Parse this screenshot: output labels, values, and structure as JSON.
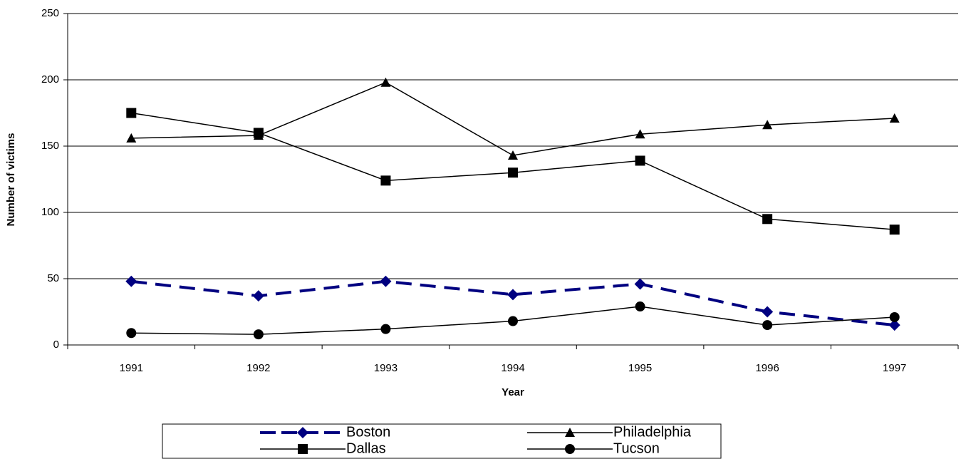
{
  "chart_data": {
    "type": "line",
    "x_label": "Year",
    "y_label": "Number of victims",
    "categories": [
      "1991",
      "1992",
      "1993",
      "1994",
      "1995",
      "1996",
      "1997"
    ],
    "series": [
      {
        "name": "Boston",
        "color": "#000080",
        "marker": "diamond",
        "dash": true,
        "values": [
          48,
          37,
          48,
          38,
          46,
          25,
          15
        ]
      },
      {
        "name": "Philadelphia",
        "color": "#000000",
        "marker": "triangle",
        "dash": false,
        "values": [
          156,
          158,
          198,
          143,
          159,
          166,
          171
        ]
      },
      {
        "name": "Dallas",
        "color": "#000000",
        "marker": "square",
        "dash": false,
        "values": [
          175,
          160,
          124,
          130,
          139,
          95,
          87
        ]
      },
      {
        "name": "Tucson",
        "color": "#000000",
        "marker": "circle",
        "dash": false,
        "values": [
          9,
          8,
          12,
          18,
          29,
          15,
          21
        ]
      }
    ],
    "ylim": [
      0,
      250
    ],
    "yticks": [
      0,
      50,
      100,
      150,
      200,
      250
    ],
    "grid": true
  }
}
